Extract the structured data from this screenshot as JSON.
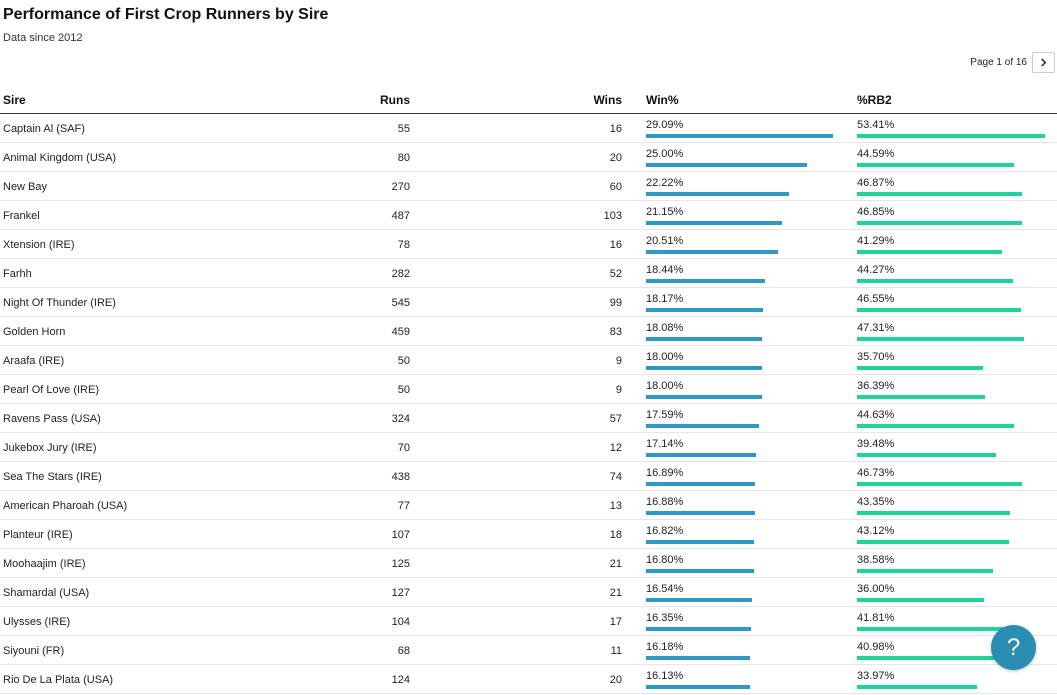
{
  "header": {
    "title": "Performance of First Crop Runners by Sire",
    "subtitle": "Data since 2012"
  },
  "pagination": {
    "label": "Page 1 of 16",
    "next_icon": "chevron-right-icon"
  },
  "help_button": {
    "label": "?",
    "icon": "help-icon"
  },
  "colors": {
    "win_bar": "#2e9ac4",
    "rb2_bar": "#1ed49b",
    "help": "#2a8db4"
  },
  "chart_data": {
    "type": "table",
    "columns": [
      "Sire",
      "Runs",
      "Wins",
      "Win%",
      "%RB2"
    ],
    "bar_max": {
      "win_pct": 29.09,
      "rb2_pct": 53.41
    },
    "rows": [
      {
        "sire": "Captain Al (SAF)",
        "runs": "55",
        "wins": "16",
        "win": "29.09%",
        "rb2": "53.41%",
        "win_v": 29.09,
        "rb2_v": 53.41
      },
      {
        "sire": "Animal Kingdom (USA)",
        "runs": "80",
        "wins": "20",
        "win": "25.00%",
        "rb2": "44.59%",
        "win_v": 25.0,
        "rb2_v": 44.59
      },
      {
        "sire": "New Bay",
        "runs": "270",
        "wins": "60",
        "win": "22.22%",
        "rb2": "46.87%",
        "win_v": 22.22,
        "rb2_v": 46.87
      },
      {
        "sire": "Frankel",
        "runs": "487",
        "wins": "103",
        "win": "21.15%",
        "rb2": "46.85%",
        "win_v": 21.15,
        "rb2_v": 46.85
      },
      {
        "sire": "Xtension (IRE)",
        "runs": "78",
        "wins": "16",
        "win": "20.51%",
        "rb2": "41.29%",
        "win_v": 20.51,
        "rb2_v": 41.29
      },
      {
        "sire": "Farhh",
        "runs": "282",
        "wins": "52",
        "win": "18.44%",
        "rb2": "44.27%",
        "win_v": 18.44,
        "rb2_v": 44.27
      },
      {
        "sire": "Night Of Thunder (IRE)",
        "runs": "545",
        "wins": "99",
        "win": "18.17%",
        "rb2": "46.55%",
        "win_v": 18.17,
        "rb2_v": 46.55
      },
      {
        "sire": "Golden Horn",
        "runs": "459",
        "wins": "83",
        "win": "18.08%",
        "rb2": "47.31%",
        "win_v": 18.08,
        "rb2_v": 47.31
      },
      {
        "sire": "Araafa (IRE)",
        "runs": "50",
        "wins": "9",
        "win": "18.00%",
        "rb2": "35.70%",
        "win_v": 18.0,
        "rb2_v": 35.7
      },
      {
        "sire": "Pearl Of Love (IRE)",
        "runs": "50",
        "wins": "9",
        "win": "18.00%",
        "rb2": "36.39%",
        "win_v": 18.0,
        "rb2_v": 36.39
      },
      {
        "sire": "Ravens Pass (USA)",
        "runs": "324",
        "wins": "57",
        "win": "17.59%",
        "rb2": "44.63%",
        "win_v": 17.59,
        "rb2_v": 44.63
      },
      {
        "sire": "Jukebox Jury (IRE)",
        "runs": "70",
        "wins": "12",
        "win": "17.14%",
        "rb2": "39.48%",
        "win_v": 17.14,
        "rb2_v": 39.48
      },
      {
        "sire": "Sea The Stars (IRE)",
        "runs": "438",
        "wins": "74",
        "win": "16.89%",
        "rb2": "46.73%",
        "win_v": 16.89,
        "rb2_v": 46.73
      },
      {
        "sire": "American Pharoah (USA)",
        "runs": "77",
        "wins": "13",
        "win": "16.88%",
        "rb2": "43.35%",
        "win_v": 16.88,
        "rb2_v": 43.35
      },
      {
        "sire": "Planteur (IRE)",
        "runs": "107",
        "wins": "18",
        "win": "16.82%",
        "rb2": "43.12%",
        "win_v": 16.82,
        "rb2_v": 43.12
      },
      {
        "sire": "Moohaajim (IRE)",
        "runs": "125",
        "wins": "21",
        "win": "16.80%",
        "rb2": "38.58%",
        "win_v": 16.8,
        "rb2_v": 38.58
      },
      {
        "sire": "Shamardal (USA)",
        "runs": "127",
        "wins": "21",
        "win": "16.54%",
        "rb2": "36.00%",
        "win_v": 16.54,
        "rb2_v": 36.0
      },
      {
        "sire": "Ulysses (IRE)",
        "runs": "104",
        "wins": "17",
        "win": "16.35%",
        "rb2": "41.81%",
        "win_v": 16.35,
        "rb2_v": 41.81
      },
      {
        "sire": "Siyouni (FR)",
        "runs": "68",
        "wins": "11",
        "win": "16.18%",
        "rb2": "40.98%",
        "win_v": 16.18,
        "rb2_v": 40.98
      },
      {
        "sire": "Rio De La Plata (USA)",
        "runs": "124",
        "wins": "20",
        "win": "16.13%",
        "rb2": "33.97%",
        "win_v": 16.13,
        "rb2_v": 33.97
      }
    ]
  }
}
